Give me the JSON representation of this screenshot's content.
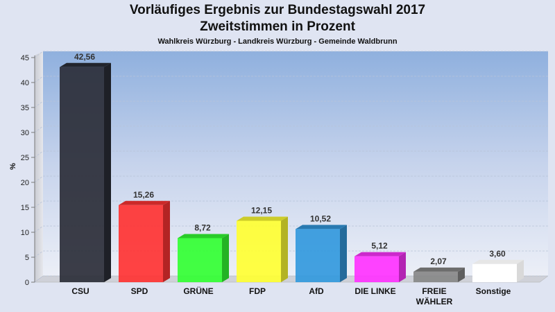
{
  "chart_data": {
    "type": "bar",
    "title": "Vorläufiges Ergebnis zur Bundestagswahl 2017",
    "title_line2": "Zweitstimmen in Prozent",
    "subtitle": "Wahlkreis Würzburg - Landkreis Würzburg - Gemeinde Waldbrunn",
    "ylabel": "%",
    "ylim": [
      0,
      45
    ],
    "yticks": [
      0,
      5,
      10,
      15,
      20,
      25,
      30,
      35,
      40,
      45
    ],
    "grid": true,
    "categories": [
      "CSU",
      "SPD",
      "GRÜNE",
      "FDP",
      "AfD",
      "DIE LINKE",
      "FREIE WÄHLER",
      "Sonstige"
    ],
    "category_lines": [
      [
        "CSU"
      ],
      [
        "SPD"
      ],
      [
        "GRÜNE"
      ],
      [
        "FDP"
      ],
      [
        "AfD"
      ],
      [
        "DIE LINKE"
      ],
      [
        "FREIE",
        "WÄHLER"
      ],
      [
        "Sonstige"
      ]
    ],
    "values": [
      42.56,
      15.26,
      8.72,
      12.15,
      10.52,
      5.12,
      2.07,
      3.6
    ],
    "value_labels": [
      "42,56",
      "15,26",
      "8,72",
      "12,15",
      "10,52",
      "5,12",
      "2,07",
      "3,60"
    ],
    "colors": [
      "#2b2e38",
      "#ff3333",
      "#33ff33",
      "#ffff33",
      "#3399dd",
      "#ff33ff",
      "#888888",
      "#ffffff"
    ]
  }
}
